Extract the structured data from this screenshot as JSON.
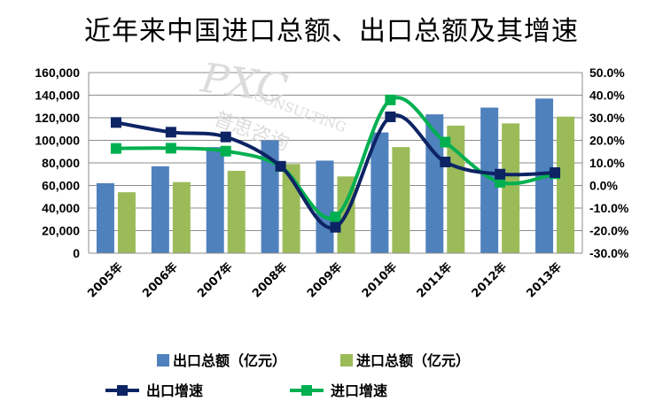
{
  "title": "近年来中国进口总额、出口总额及其增速",
  "watermark": {
    "brand": "PXC",
    "sub": "CONSULTING",
    "cn": "普思咨询"
  },
  "chart_data": {
    "type": "bar",
    "categories": [
      "2005年",
      "2006年",
      "2007年",
      "2008年",
      "2009年",
      "2010年",
      "2011年",
      "2012年",
      "2013年"
    ],
    "y_left": {
      "range": [
        0,
        160000
      ],
      "ticks": [
        "0",
        "20,000",
        "40,000",
        "60,000",
        "80,000",
        "100,000",
        "120,000",
        "140,000",
        "160,000"
      ]
    },
    "y_right": {
      "range": [
        -30,
        50
      ],
      "ticks": [
        "-30.0%",
        "-20.0%",
        "-10.0%",
        "0.0%",
        "10.0%",
        "20.0%",
        "30.0%",
        "40.0%",
        "50.0%"
      ]
    },
    "grid": true,
    "legend_position": "bottom",
    "series": [
      {
        "name": "出口总额（亿元）",
        "kind": "bar",
        "axis": "left",
        "color": "#4F81BD",
        "values": [
          62000,
          77000,
          94000,
          100000,
          82000,
          107000,
          123000,
          129000,
          137000
        ]
      },
      {
        "name": "进口总额（亿元）",
        "kind": "bar",
        "axis": "left",
        "color": "#9BBB59",
        "values": [
          54000,
          63000,
          73000,
          79000,
          68000,
          94000,
          113000,
          115000,
          121000
        ]
      },
      {
        "name": "出口增速",
        "kind": "line",
        "axis": "right",
        "color": "#0D2464",
        "values": [
          27.9,
          23.6,
          21.5,
          8.5,
          -18.5,
          30.4,
          10.4,
          5.0,
          5.7
        ]
      },
      {
        "name": "进口增速",
        "kind": "line",
        "axis": "right",
        "color": "#00B050",
        "values": [
          16.4,
          16.5,
          15.2,
          8.4,
          -13.9,
          37.9,
          19.2,
          1.4,
          5.2
        ]
      }
    ]
  }
}
